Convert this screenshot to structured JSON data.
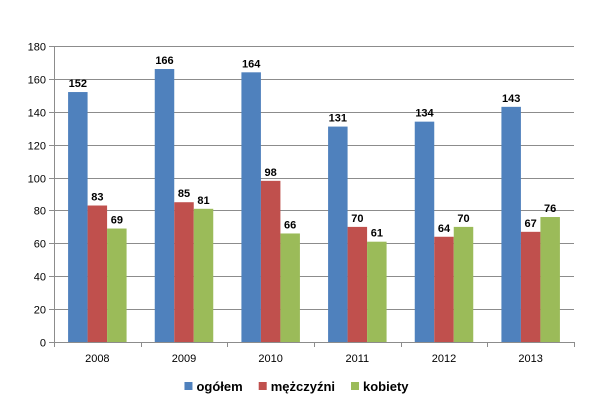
{
  "chart_data": {
    "type": "bar",
    "title": "",
    "xlabel": "",
    "ylabel": "",
    "categories": [
      "2008",
      "2009",
      "2010",
      "2011",
      "2012",
      "2013"
    ],
    "series": [
      {
        "name": "ogółem",
        "color": "#4F81BD",
        "values": [
          152,
          166,
          164,
          131,
          134,
          143
        ]
      },
      {
        "name": "mężczyźni",
        "color": "#C0504D",
        "values": [
          83,
          85,
          98,
          70,
          64,
          67
        ]
      },
      {
        "name": "kobiety",
        "color": "#9BBB59",
        "values": [
          69,
          81,
          66,
          61,
          70,
          76
        ]
      }
    ],
    "ylim": [
      0,
      180
    ],
    "yticks": [
      0,
      20,
      40,
      60,
      80,
      100,
      120,
      140,
      160,
      180
    ],
    "grid": true,
    "legend_position": "bottom",
    "data_labels": true
  }
}
